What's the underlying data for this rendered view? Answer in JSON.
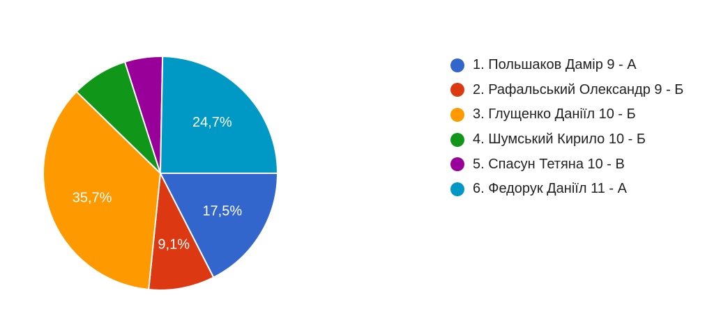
{
  "chart_data": {
    "type": "pie",
    "title": "",
    "legend_position": "right",
    "start_angle_deg": 0,
    "direction": "clockwise",
    "slices": [
      {
        "label": "1. Польшаков Дамір 9 - А",
        "value": 17.5,
        "display": "17,5%",
        "color": "#3366cc"
      },
      {
        "label": "2. Рафальський Олександр 9 - Б",
        "value": 9.1,
        "display": "9,1%",
        "color": "#dc3912"
      },
      {
        "label": "3. Глущенко Даніїл 10 - Б",
        "value": 35.7,
        "display": "35,7%",
        "color": "#ff9900"
      },
      {
        "label": "4. Шумський Кирило 10 - Б",
        "value": 7.8,
        "display": "",
        "color": "#109618"
      },
      {
        "label": "5. Спасун Тетяна 10 - В",
        "value": 5.2,
        "display": "",
        "color": "#990099"
      },
      {
        "label": "6. Федорук Даніїл 11 - А",
        "value": 24.7,
        "display": "24,7%",
        "color": "#0099c6"
      }
    ]
  }
}
